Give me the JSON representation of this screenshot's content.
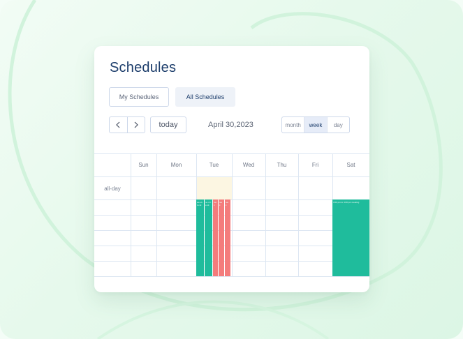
{
  "title": "Schedules",
  "tabs": [
    {
      "label": "My Schedules",
      "active": false
    },
    {
      "label": "All Schedules",
      "active": true
    }
  ],
  "toolbar": {
    "today_label": "today",
    "date_label": "April 30,2023",
    "views": [
      {
        "label": "month",
        "active": false
      },
      {
        "label": "week",
        "active": true
      },
      {
        "label": "day",
        "active": false
      }
    ]
  },
  "calendar": {
    "days": [
      "Sun",
      "Mon",
      "Tue",
      "Wed",
      "Thu",
      "Fri",
      "Sat"
    ],
    "allday_label": "all-day",
    "events": [
      {
        "day": "Tue",
        "text": "we ek ta sk",
        "color": "#1fbc9c"
      },
      {
        "day": "Tue",
        "text": "ne xt ta sk",
        "color": "#1fbc9c"
      },
      {
        "day": "Tue",
        "text": "tas k",
        "color": "#f47c7c"
      },
      {
        "day": "Tue",
        "text": "tas k",
        "color": "#f47c7c"
      },
      {
        "day": "Tue",
        "text": "tas k",
        "color": "#f47c7c"
      },
      {
        "day": "Sat",
        "text": "3:00 pm to 4:00 pm meeting",
        "color": "#1fbc9c"
      }
    ]
  },
  "colors": {
    "title": "#1c3d6b",
    "event_green": "#1fbc9c",
    "event_red": "#f47c7c",
    "today_highlight": "#fcf6e2",
    "background": "#e6f9ec"
  }
}
